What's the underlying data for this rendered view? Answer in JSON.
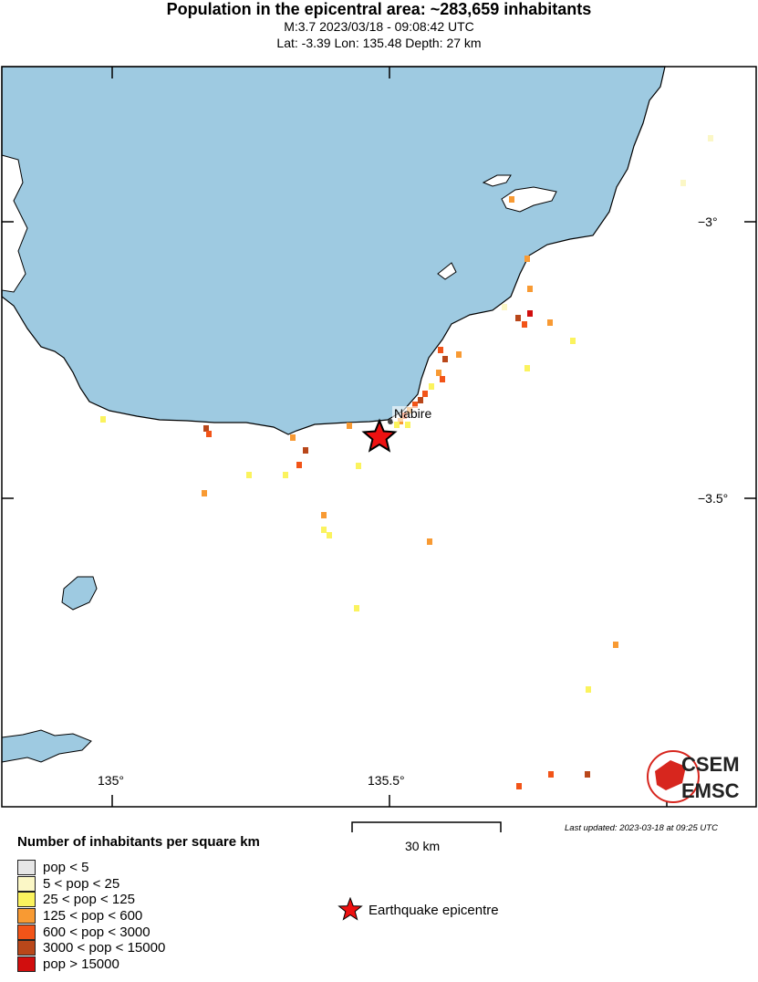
{
  "header": {
    "title": "Population in the epicentral area: ~283,659 inhabitants",
    "line2": "M:3.7 2023/03/18 - 09:08:42 UTC",
    "line3": "Lat: -3.39 Lon: 135.48 Depth: 27 km"
  },
  "map": {
    "lon_labels": [
      "135°",
      "135.5°"
    ],
    "lat_labels": [
      "−3°",
      "−3.5°"
    ],
    "city": "Nabire",
    "sea_color": "#9ecae1",
    "epicentre_color": "#ee1111",
    "logo": {
      "top": "CSEM",
      "bottom": "EMSC",
      "color": "#d7261e"
    }
  },
  "scale": {
    "label": "30 km"
  },
  "updated": "Last updated: 2023-03-18 at 09:25 UTC",
  "legend": {
    "title": "Number of inhabitants per square km",
    "items": [
      {
        "label": "pop < 5",
        "color": "#e6e6e6"
      },
      {
        "label": "5 < pop < 25",
        "color": "#fbf7c6"
      },
      {
        "label": "25 < pop < 125",
        "color": "#fbf35e"
      },
      {
        "label": "125 < pop < 600",
        "color": "#f89a33"
      },
      {
        "label": "600 < pop < 3000",
        "color": "#f25418"
      },
      {
        "label": "3000 < pop < 15000",
        "color": "#b9471a"
      },
      {
        "label": "pop > 15000",
        "color": "#d10e0e"
      }
    ],
    "epicentre_label": "Earthquake epicentre"
  }
}
